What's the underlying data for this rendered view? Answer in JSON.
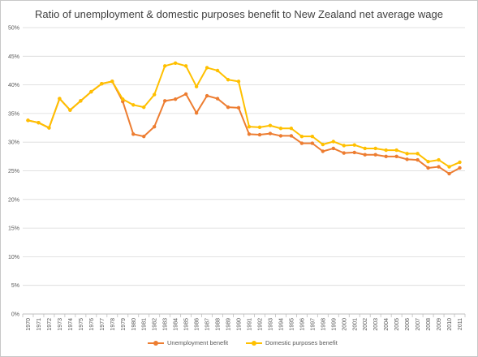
{
  "chart_data": {
    "type": "line",
    "title": "Ratio of unemployment & domestic purposes benefit to New Zealand net average wage",
    "xlabel": "",
    "ylabel": "",
    "ylim": [
      0,
      50
    ],
    "y_tick_step": 5,
    "y_tick_labels": [
      "0%",
      "5%",
      "10%",
      "15%",
      "20%",
      "25%",
      "30%",
      "35%",
      "40%",
      "45%",
      "50%"
    ],
    "grid": true,
    "legend_position": "bottom",
    "categories": [
      "1970",
      "1971",
      "1972",
      "1973",
      "1974",
      "1975",
      "1976",
      "1977",
      "1978",
      "1979",
      "1980",
      "1981",
      "1982",
      "1983",
      "1984",
      "1985",
      "1986",
      "1987",
      "1988",
      "1989",
      "1990",
      "1991",
      "1992",
      "1993",
      "1994",
      "1995",
      "1996",
      "1997",
      "1998",
      "1999",
      "2000",
      "2001",
      "2002",
      "2003",
      "2004",
      "2005",
      "2006",
      "2007",
      "2008",
      "2009",
      "2010",
      "2011"
    ],
    "series": [
      {
        "name": "Unemployment benefit",
        "color": "#ed7d31",
        "values": [
          33.8,
          33.4,
          32.5,
          37.6,
          35.6,
          37.2,
          38.8,
          40.2,
          40.6,
          37.1,
          31.4,
          31.0,
          32.7,
          37.2,
          37.5,
          38.4,
          35.1,
          38.1,
          37.6,
          36.1,
          36.0,
          31.4,
          31.3,
          31.5,
          31.1,
          31.1,
          29.8,
          29.8,
          28.4,
          28.9,
          28.1,
          28.2,
          27.8,
          27.8,
          27.5,
          27.5,
          27.0,
          26.9,
          25.5,
          25.7,
          24.5,
          25.5
        ]
      },
      {
        "name": "Domestic purposes benefit",
        "color": "#ffc000",
        "values": [
          33.8,
          33.4,
          32.5,
          37.6,
          35.6,
          37.2,
          38.8,
          40.2,
          40.6,
          37.5,
          36.5,
          36.1,
          38.3,
          43.3,
          43.8,
          43.3,
          39.7,
          43.0,
          42.5,
          40.9,
          40.6,
          32.7,
          32.6,
          32.9,
          32.4,
          32.4,
          31.0,
          31.0,
          29.6,
          30.1,
          29.4,
          29.5,
          28.9,
          28.9,
          28.6,
          28.6,
          28.0,
          28.0,
          26.6,
          26.9,
          25.7,
          26.5
        ]
      }
    ]
  }
}
